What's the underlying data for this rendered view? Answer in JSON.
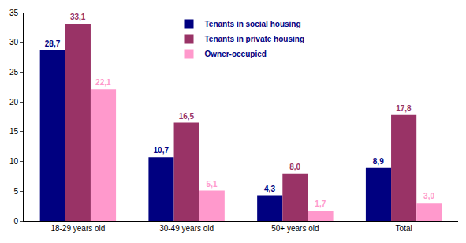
{
  "chart_data": {
    "type": "bar",
    "categories": [
      "18-29 years old",
      "30-49 years old",
      "50+ years old",
      "Total"
    ],
    "series": [
      {
        "name": "Tenants in social housing",
        "color": "#000080",
        "values": [
          28.7,
          10.7,
          4.3,
          8.9
        ],
        "value_labels": [
          "28,7",
          "10,7",
          "4,3",
          "8,9"
        ]
      },
      {
        "name": "Tenants in private housing",
        "color": "#993366",
        "values": [
          33.1,
          16.5,
          8.0,
          17.8
        ],
        "value_labels": [
          "33,1",
          "16,5",
          "8,0",
          "17,8"
        ]
      },
      {
        "name": "Owner-occupied",
        "color": "#ff99cc",
        "values": [
          22.1,
          5.1,
          1.7,
          3.0
        ],
        "value_labels": [
          "22,1",
          "5,1",
          "1,7",
          "3,0"
        ]
      }
    ],
    "ylim": [
      0,
      35
    ],
    "yticks": [
      0,
      5,
      10,
      15,
      20,
      25,
      30,
      35
    ],
    "grid": false,
    "legend": "upper center",
    "data_labels": true
  }
}
